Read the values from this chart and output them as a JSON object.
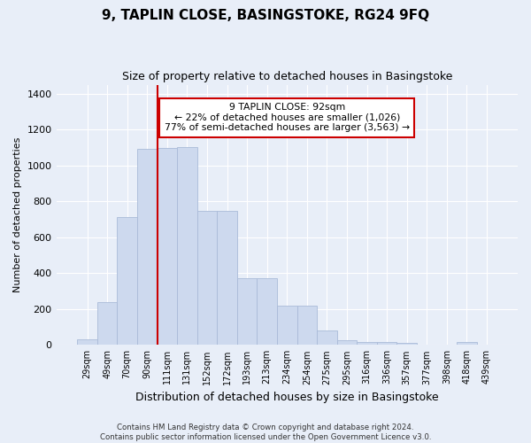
{
  "title_line1": "9, TAPLIN CLOSE, BASINGSTOKE, RG24 9FQ",
  "title_line2": "Size of property relative to detached houses in Basingstoke",
  "xlabel": "Distribution of detached houses by size in Basingstoke",
  "ylabel": "Number of detached properties",
  "categories": [
    "29sqm",
    "49sqm",
    "70sqm",
    "90sqm",
    "111sqm",
    "131sqm",
    "152sqm",
    "172sqm",
    "193sqm",
    "213sqm",
    "234sqm",
    "254sqm",
    "275sqm",
    "295sqm",
    "316sqm",
    "336sqm",
    "357sqm",
    "377sqm",
    "398sqm",
    "418sqm",
    "439sqm"
  ],
  "values": [
    30,
    240,
    710,
    1090,
    1095,
    1100,
    748,
    748,
    370,
    370,
    218,
    218,
    80,
    28,
    18,
    15,
    13,
    0,
    0,
    18,
    0
  ],
  "bar_color": "#cdd9ee",
  "bar_edge_color": "#aabbd8",
  "red_line_index": 3.5,
  "annotation_text": "9 TAPLIN CLOSE: 92sqm\n← 22% of detached houses are smaller (1,026)\n77% of semi-detached houses are larger (3,563) →",
  "annotation_box_color": "#ffffff",
  "annotation_box_edge_color": "#cc0000",
  "red_line_color": "#cc0000",
  "ylim": [
    0,
    1450
  ],
  "yticks": [
    0,
    200,
    400,
    600,
    800,
    1000,
    1200,
    1400
  ],
  "footer_line1": "Contains HM Land Registry data © Crown copyright and database right 2024.",
  "footer_line2": "Contains public sector information licensed under the Open Government Licence v3.0.",
  "bg_color": "#e8eef8",
  "plot_bg_color": "#e8eef8"
}
